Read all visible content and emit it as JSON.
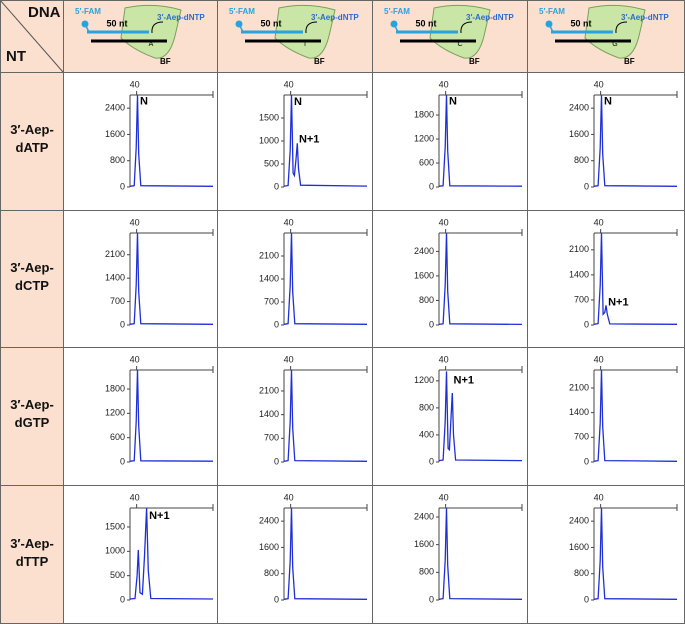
{
  "table": {
    "corner_top": "DNA",
    "corner_bottom": "NT",
    "columns": [
      {
        "fam": "5′-FAM",
        "length": "50 nt",
        "primer": "3′-Aep-dNTP",
        "base": "A",
        "enzyme": "BF"
      },
      {
        "fam": "5′-FAM",
        "length": "50 nt",
        "primer": "3′-Aep-dNTP",
        "base": "T",
        "enzyme": "BF"
      },
      {
        "fam": "5′-FAM",
        "length": "50 nt",
        "primer": "3′-Aep-dNTP",
        "base": "C",
        "enzyme": "BF"
      },
      {
        "fam": "5′-FAM",
        "length": "50 nt",
        "primer": "3′-Aep-dNTP",
        "base": "G",
        "enzyme": "BF"
      }
    ],
    "rows": [
      "3′-Aep-dATP",
      "3′-Aep-dCTP",
      "3′-Aep-dGTP",
      "3′-Aep-dTTP"
    ]
  },
  "chart_data": [
    {
      "type": "line",
      "color": "#1f2fd8",
      "xlim": [
        39.2,
        49.2
      ],
      "xticks": [
        40
      ],
      "ylim": [
        0,
        2800
      ],
      "yticks": [
        0,
        800,
        1600,
        2400
      ],
      "x": [
        39.2,
        39.7,
        39.95,
        40.1,
        40.25,
        40.5,
        49.2
      ],
      "values": [
        20,
        40,
        1200,
        2800,
        1000,
        40,
        20
      ],
      "annotations": [
        {
          "text": "N",
          "x": 40.4,
          "y": 2600
        }
      ]
    },
    {
      "type": "line",
      "color": "#1f2fd8",
      "xlim": [
        39.2,
        49.2
      ],
      "xticks": [
        40
      ],
      "ylim": [
        0,
        2000
      ],
      "yticks": [
        0,
        500,
        1000,
        1500
      ],
      "x": [
        39.2,
        39.7,
        39.95,
        40.1,
        40.3,
        40.45,
        40.65,
        40.8,
        40.95,
        41.2,
        49.2
      ],
      "values": [
        20,
        30,
        800,
        2000,
        300,
        250,
        600,
        950,
        400,
        40,
        20
      ],
      "annotations": [
        {
          "text": "N",
          "x": 40.4,
          "y": 1850
        },
        {
          "text": "N+1",
          "x": 41.0,
          "y": 1030
        }
      ]
    },
    {
      "type": "line",
      "color": "#1f2fd8",
      "xlim": [
        39.2,
        49.2
      ],
      "xticks": [
        40
      ],
      "ylim": [
        0,
        2300
      ],
      "yticks": [
        0,
        600,
        1200,
        1800
      ],
      "x": [
        39.2,
        39.7,
        39.95,
        40.1,
        40.25,
        40.5,
        49.2
      ],
      "values": [
        20,
        30,
        1000,
        2300,
        900,
        30,
        20
      ],
      "annotations": [
        {
          "text": "N",
          "x": 40.4,
          "y": 2130
        }
      ]
    },
    {
      "type": "line",
      "color": "#1f2fd8",
      "xlim": [
        39.2,
        49.2
      ],
      "xticks": [
        40
      ],
      "ylim": [
        0,
        2800
      ],
      "yticks": [
        0,
        800,
        1600,
        2400
      ],
      "x": [
        39.2,
        39.7,
        39.95,
        40.1,
        40.25,
        40.5,
        49.2
      ],
      "values": [
        20,
        40,
        1200,
        2800,
        1000,
        40,
        20
      ],
      "annotations": [
        {
          "text": "N",
          "x": 40.4,
          "y": 2600
        }
      ]
    },
    {
      "type": "line",
      "color": "#1f2fd8",
      "xlim": [
        39.2,
        49.2
      ],
      "xticks": [
        40
      ],
      "ylim": [
        0,
        2750
      ],
      "yticks": [
        0,
        700,
        1400,
        2100
      ],
      "x": [
        39.2,
        39.7,
        39.95,
        40.1,
        40.25,
        40.5,
        49.2
      ],
      "values": [
        20,
        40,
        1200,
        2750,
        1000,
        40,
        20
      ]
    },
    {
      "type": "line",
      "color": "#1f2fd8",
      "xlim": [
        39.2,
        49.2
      ],
      "xticks": [
        40
      ],
      "ylim": [
        0,
        2800
      ],
      "yticks": [
        0,
        700,
        1400,
        2100
      ],
      "x": [
        39.2,
        39.7,
        39.95,
        40.1,
        40.25,
        40.5,
        49.2
      ],
      "values": [
        20,
        40,
        1200,
        2800,
        1000,
        40,
        20
      ]
    },
    {
      "type": "line",
      "color": "#1f2fd8",
      "xlim": [
        39.2,
        49.2
      ],
      "xticks": [
        40
      ],
      "ylim": [
        0,
        3000
      ],
      "yticks": [
        0,
        800,
        1600,
        2400
      ],
      "x": [
        39.2,
        39.7,
        39.95,
        40.1,
        40.25,
        40.5,
        49.2
      ],
      "values": [
        20,
        40,
        1300,
        3000,
        1100,
        40,
        20
      ]
    },
    {
      "type": "line",
      "color": "#1f2fd8",
      "xlim": [
        39.2,
        49.2
      ],
      "xticks": [
        40
      ],
      "ylim": [
        0,
        2570
      ],
      "yticks": [
        0,
        700,
        1400,
        2100
      ],
      "x": [
        39.2,
        39.7,
        39.95,
        40.1,
        40.3,
        40.5,
        40.65,
        40.8,
        41.1,
        49.2
      ],
      "values": [
        20,
        40,
        1100,
        2570,
        300,
        350,
        550,
        300,
        30,
        20
      ],
      "annotations": [
        {
          "text": "N+1",
          "x": 40.9,
          "y": 620
        }
      ]
    },
    {
      "type": "line",
      "color": "#1f2fd8",
      "xlim": [
        39.2,
        49.2
      ],
      "xticks": [
        40
      ],
      "ylim": [
        0,
        2270
      ],
      "yticks": [
        0,
        600,
        1200,
        1800
      ],
      "x": [
        39.2,
        39.7,
        39.95,
        40.1,
        40.25,
        40.5,
        49.2
      ],
      "values": [
        20,
        30,
        1000,
        2270,
        900,
        30,
        20
      ]
    },
    {
      "type": "line",
      "color": "#1f2fd8",
      "xlim": [
        39.2,
        49.2
      ],
      "xticks": [
        40
      ],
      "ylim": [
        0,
        2720
      ],
      "yticks": [
        0,
        700,
        1400,
        2100
      ],
      "x": [
        39.2,
        39.7,
        39.95,
        40.1,
        40.25,
        40.5,
        49.2
      ],
      "values": [
        20,
        40,
        1200,
        2720,
        1000,
        40,
        20
      ]
    },
    {
      "type": "line",
      "color": "#1f2fd8",
      "xlim": [
        39.2,
        49.2
      ],
      "xticks": [
        40
      ],
      "ylim": [
        0,
        1360
      ],
      "yticks": [
        0,
        400,
        800,
        1200
      ],
      "x": [
        39.2,
        39.7,
        39.95,
        40.1,
        40.3,
        40.45,
        40.65,
        40.8,
        40.95,
        41.2,
        49.2
      ],
      "values": [
        20,
        30,
        600,
        1340,
        200,
        180,
        650,
        1020,
        400,
        30,
        20
      ],
      "annotations": [
        {
          "text": "N+1",
          "x": 40.95,
          "y": 1200
        }
      ]
    },
    {
      "type": "line",
      "color": "#1f2fd8",
      "xlim": [
        39.2,
        49.2
      ],
      "xticks": [
        40
      ],
      "ylim": [
        0,
        2610
      ],
      "yticks": [
        0,
        700,
        1400,
        2100
      ],
      "x": [
        39.2,
        39.7,
        39.95,
        40.1,
        40.25,
        40.5,
        49.2
      ],
      "values": [
        20,
        40,
        1100,
        2610,
        1000,
        40,
        20
      ]
    },
    {
      "type": "line",
      "color": "#1f2fd8",
      "xlim": [
        39.2,
        49.2
      ],
      "xticks": [
        40
      ],
      "ylim": [
        0,
        1890
      ],
      "yticks": [
        0,
        500,
        1000,
        1500
      ],
      "x": [
        39.2,
        39.8,
        40.05,
        40.2,
        40.4,
        40.7,
        40.95,
        41.2,
        41.4,
        41.7,
        49.2
      ],
      "values": [
        20,
        30,
        500,
        1030,
        150,
        120,
        900,
        1890,
        600,
        30,
        20
      ],
      "annotations": [
        {
          "text": "N+1",
          "x": 41.5,
          "y": 1720
        }
      ]
    },
    {
      "type": "line",
      "color": "#1f2fd8",
      "xlim": [
        39.2,
        49.2
      ],
      "xticks": [
        40
      ],
      "ylim": [
        0,
        2800
      ],
      "yticks": [
        0,
        800,
        1600,
        2400
      ],
      "x": [
        39.2,
        39.7,
        39.95,
        40.1,
        40.25,
        40.5,
        49.2
      ],
      "values": [
        20,
        40,
        1200,
        2800,
        1000,
        40,
        20
      ]
    },
    {
      "type": "line",
      "color": "#1f2fd8",
      "xlim": [
        39.2,
        49.2
      ],
      "xticks": [
        40
      ],
      "ylim": [
        0,
        2660
      ],
      "yticks": [
        0,
        800,
        1600,
        2400
      ],
      "x": [
        39.2,
        39.7,
        39.95,
        40.1,
        40.25,
        40.5,
        49.2
      ],
      "values": [
        20,
        40,
        1150,
        2660,
        1000,
        40,
        20
      ]
    },
    {
      "type": "line",
      "color": "#1f2fd8",
      "xlim": [
        39.2,
        49.2
      ],
      "xticks": [
        40
      ],
      "ylim": [
        0,
        2800
      ],
      "yticks": [
        0,
        800,
        1600,
        2400
      ],
      "x": [
        39.2,
        39.7,
        39.95,
        40.1,
        40.25,
        40.5,
        49.2
      ],
      "values": [
        20,
        40,
        1200,
        2800,
        1000,
        40,
        20
      ]
    }
  ]
}
